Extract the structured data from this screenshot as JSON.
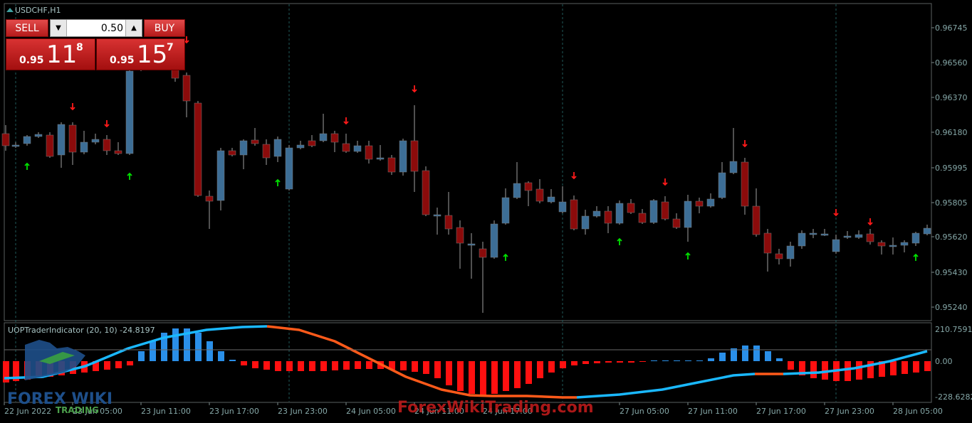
{
  "chart": {
    "symbol_label": "USDCHF,H1",
    "price_ticks": [
      "0.96745",
      "0.96560",
      "0.96370",
      "0.96180",
      "0.95995",
      "0.95805",
      "0.95620",
      "0.95430",
      "0.95240"
    ],
    "time_ticks": [
      "22 Jun 2022",
      "23 Jun 05:00",
      "23 Jun 11:00",
      "23 Jun 17:00",
      "23 Jun 23:00",
      "24 Jun 05:00",
      "24 Jun 11:00",
      "24 Jun 17:00",
      "27 Jun 05:00",
      "27 Jun 11:00",
      "27 Jun 17:00",
      "27 Jun 23:00",
      "28 Jun 05:00"
    ]
  },
  "indicator": {
    "label": "UOPTraderIndicator (20, 10) -24.8197",
    "ticks": [
      "210.7591",
      "0.00",
      "-228.6282"
    ]
  },
  "trade_panel": {
    "sell_label": "SELL",
    "buy_label": "BUY",
    "lot_value": "0.50",
    "sell_small": "0.95",
    "sell_big": "11",
    "sell_sup": "8",
    "buy_small": "0.95",
    "buy_big": "15",
    "buy_sup": "7"
  },
  "watermark": {
    "logo_line1": "FOREX WIKI",
    "logo_line2": "TRADING",
    "site": "ForexWikiTrading.com"
  },
  "colors": {
    "bull": "#3d6e96",
    "bear": "#8b0b0b",
    "grid": "#1f5a5a",
    "axis_text": "#86a8a8",
    "up_arrow": "#00e000",
    "down_arrow": "#ff1a1a",
    "hist_pos": "#2a8fe8",
    "hist_neg": "#ff1010",
    "line_up": "#1ab8ff",
    "line_down": "#ff5a1a"
  }
}
